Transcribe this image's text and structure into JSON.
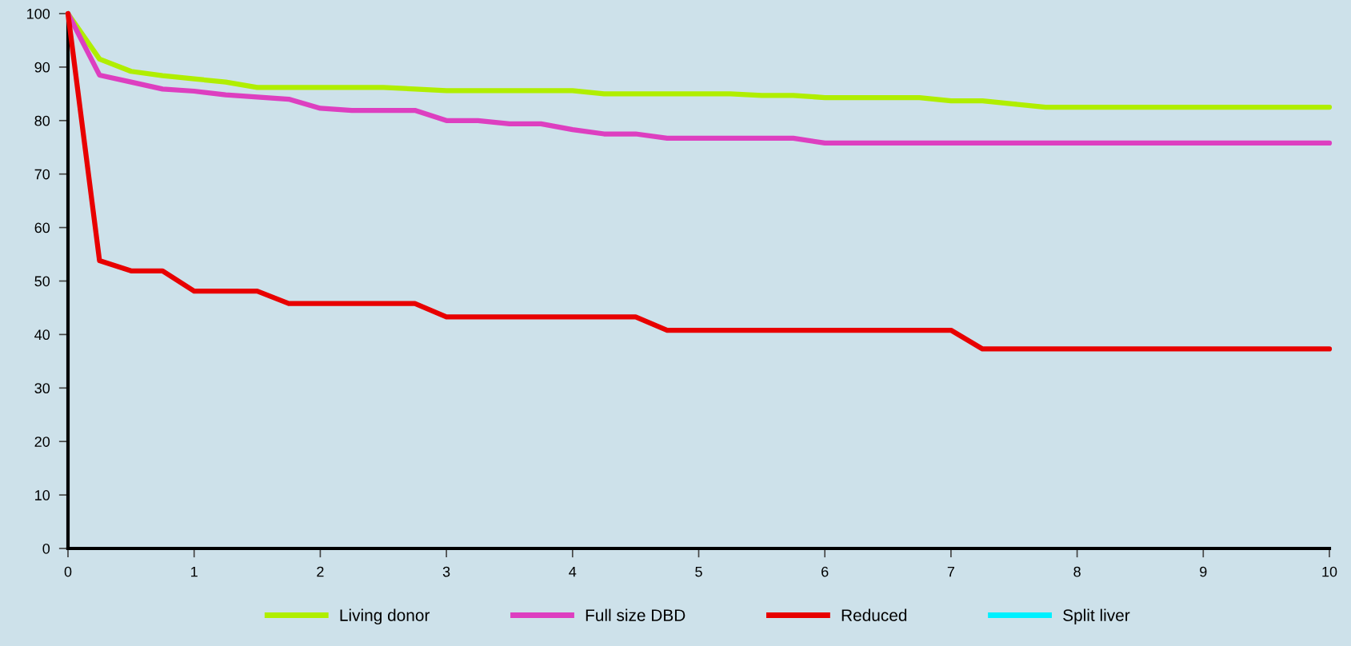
{
  "chart_data": {
    "type": "line",
    "x": [
      0,
      0.25,
      0.5,
      0.75,
      1,
      1.25,
      1.5,
      1.75,
      2,
      2.25,
      2.5,
      2.75,
      3,
      3.25,
      3.5,
      3.75,
      4,
      4.25,
      4.5,
      4.75,
      5,
      5.25,
      5.5,
      5.75,
      6,
      6.25,
      6.5,
      6.75,
      7,
      7.25,
      7.5,
      7.75,
      8,
      8.25,
      8.5,
      8.75,
      9,
      9.25,
      9.5,
      9.75,
      10
    ],
    "series": [
      {
        "name": "Living donor",
        "color": "#b0ee00",
        "values": [
          100,
          91.5,
          89.2,
          88.4,
          87.8,
          87.2,
          86.2,
          86.2,
          86.2,
          86.2,
          86.2,
          85.9,
          85.6,
          85.6,
          85.6,
          85.6,
          85.6,
          85,
          85,
          85,
          85,
          85,
          84.7,
          84.7,
          84.3,
          84.3,
          84.3,
          84.3,
          83.7,
          83.7,
          83.1,
          82.5,
          82.5,
          82.5,
          82.5,
          82.5,
          82.5,
          82.5,
          82.5,
          82.5,
          82.5
        ]
      },
      {
        "name": "Full size DBD",
        "color": "#dd3fc0",
        "values": [
          100,
          88.5,
          87.2,
          85.9,
          85.5,
          84.8,
          84.4,
          84,
          82.3,
          81.9,
          81.9,
          81.9,
          80,
          80,
          79.4,
          79.4,
          78.3,
          77.5,
          77.5,
          76.7,
          76.7,
          76.7,
          76.7,
          76.7,
          75.8,
          75.8,
          75.8,
          75.8,
          75.8,
          75.8,
          75.8,
          75.8,
          75.8,
          75.8,
          75.8,
          75.8,
          75.8,
          75.8,
          75.8,
          75.8,
          75.8
        ]
      },
      {
        "name": "Reduced",
        "color": "#e80000",
        "values": [
          100,
          53.8,
          51.9,
          51.9,
          48.1,
          48.1,
          48.1,
          45.8,
          45.8,
          45.8,
          45.8,
          45.8,
          43.3,
          43.3,
          43.3,
          43.3,
          43.3,
          43.3,
          43.3,
          40.8,
          40.8,
          40.8,
          40.8,
          40.8,
          40.8,
          40.8,
          40.8,
          40.8,
          40.8,
          37.3,
          37.3,
          37.3,
          37.3,
          37.3,
          37.3,
          37.3,
          37.3,
          37.3,
          37.3,
          37.3,
          37.3
        ]
      },
      {
        "name": "Split liver",
        "color": "#00f0ff",
        "values": [
          null,
          null,
          null,
          null,
          null,
          null,
          null,
          null,
          null,
          null,
          null,
          null,
          null,
          null,
          null,
          null,
          null,
          null,
          null,
          null,
          null,
          null,
          null,
          null,
          null,
          null,
          null,
          null,
          null,
          null,
          null,
          null,
          null,
          null,
          null,
          null,
          null,
          null,
          null,
          null,
          null
        ]
      }
    ],
    "xlim": [
      0,
      10
    ],
    "xticks": [
      0,
      1,
      2,
      3,
      4,
      5,
      6,
      7,
      8,
      9,
      10
    ],
    "ylim": [
      0,
      100
    ],
    "yticks": [
      0,
      10,
      20,
      30,
      40,
      50,
      60,
      70,
      80,
      90,
      100
    ],
    "grid": false,
    "legend": "bottom",
    "line_style": "solid",
    "marker": "none"
  }
}
